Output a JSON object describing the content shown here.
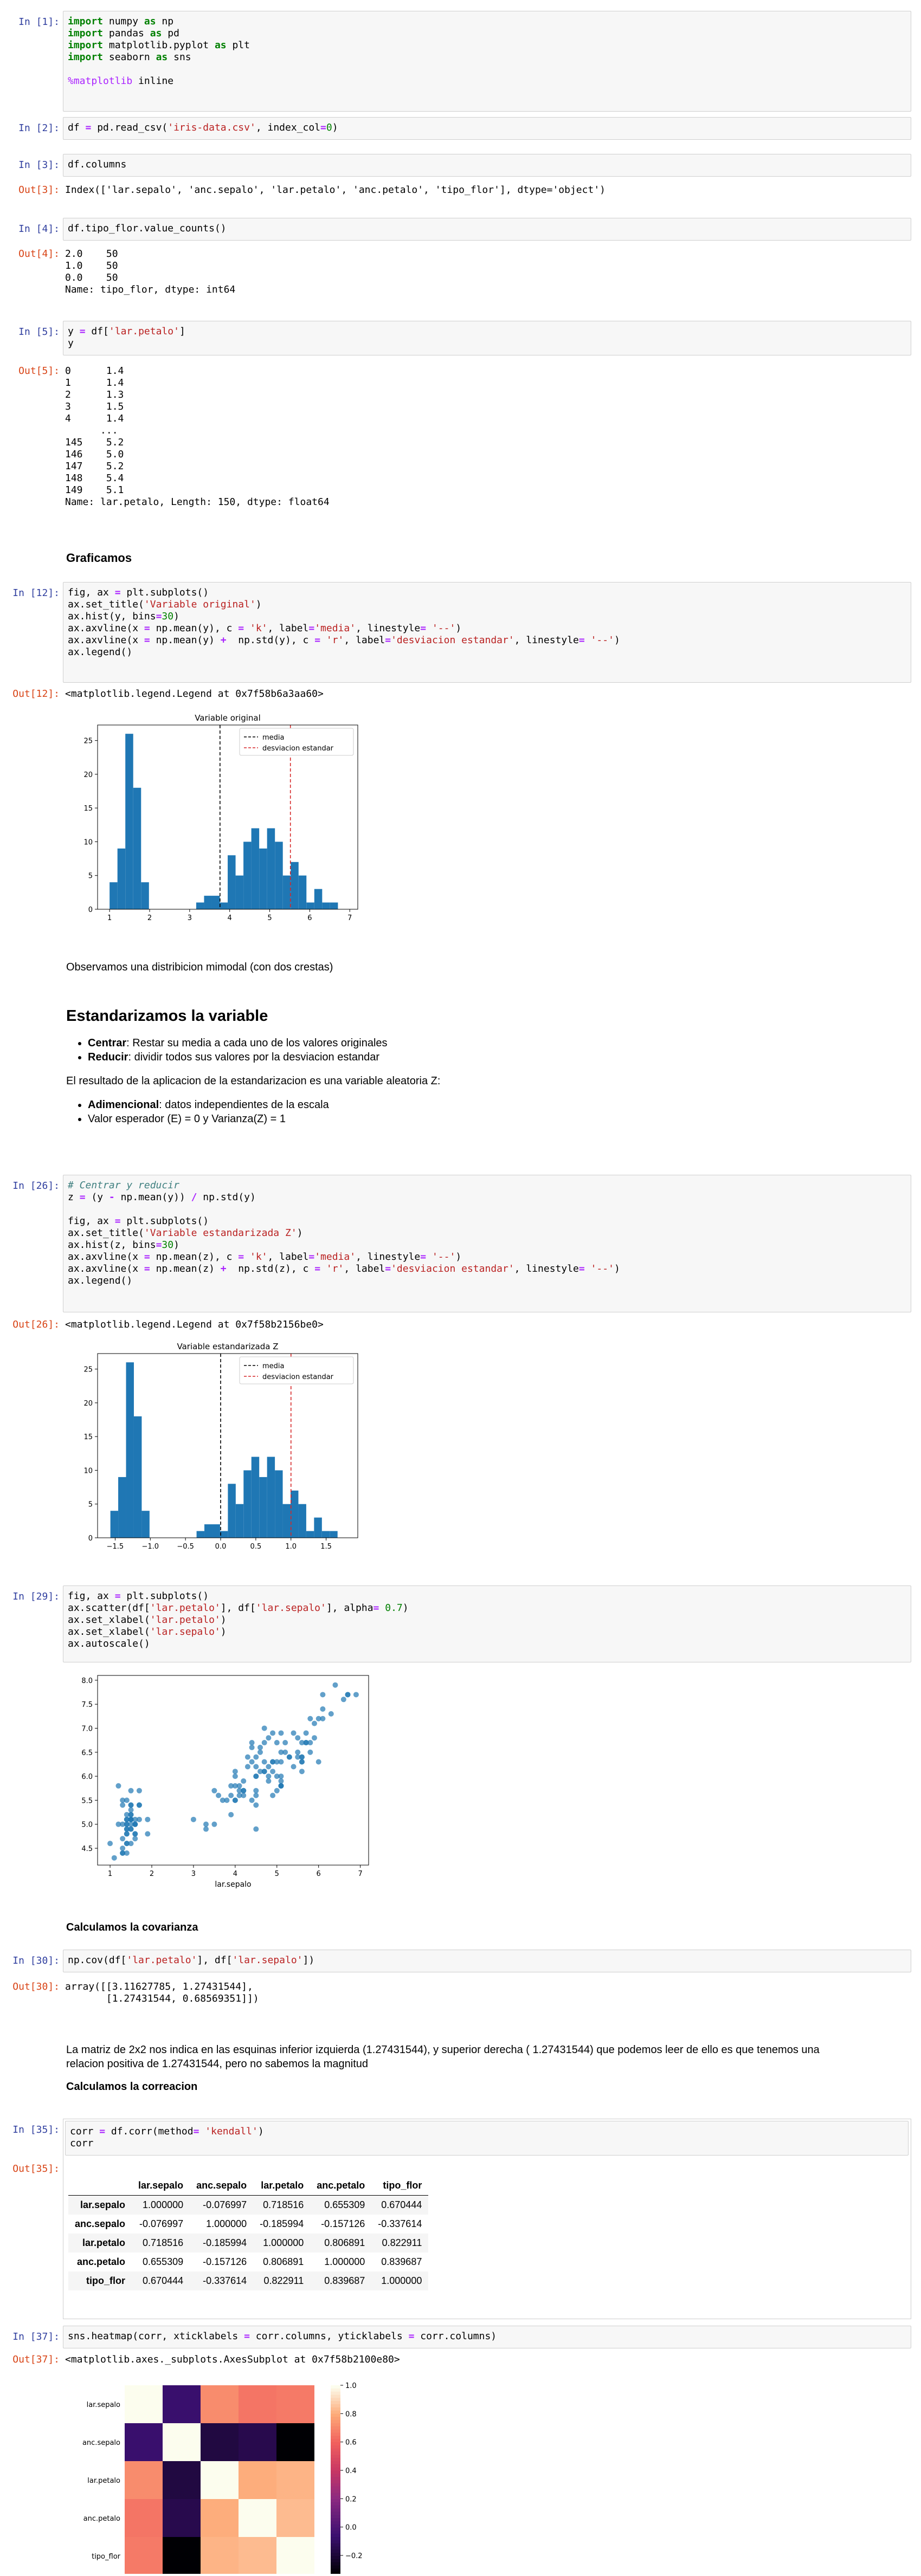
{
  "cells": {
    "c1": {
      "prompt": "In [1]:"
    },
    "c2": {
      "prompt": "In [2]:"
    },
    "c3": {
      "prompt": "In [3]:",
      "out_prompt": "Out[3]:",
      "output": "Index(['lar.sepalo', 'anc.sepalo', 'lar.petalo', 'anc.petalo', 'tipo_flor'], dtype='object')"
    },
    "c4": {
      "prompt": "In [4]:",
      "out_prompt": "Out[4]:",
      "output": "2.0    50\n1.0    50\n0.0    50\nName: tipo_flor, dtype: int64"
    },
    "c5": {
      "prompt": "In [5]:",
      "out_prompt": "Out[5]:",
      "output": "0      1.4\n1      1.4\n2      1.3\n3      1.5\n4      1.4\n      ...\n145    5.2\n146    5.0\n147    5.2\n148    5.4\n149    5.1\nName: lar.petalo, Length: 150, dtype: float64"
    },
    "c12": {
      "prompt": "In [12]:",
      "out_prompt": "Out[12]:",
      "output": "<matplotlib.legend.Legend at 0x7f58b6a3aa60>"
    },
    "c26": {
      "prompt": "In [26]:",
      "out_prompt": "Out[26]:",
      "output": "<matplotlib.legend.Legend at 0x7f58b2156be0>"
    },
    "c29": {
      "prompt": "In [29]:"
    },
    "c30": {
      "prompt": "In [30]:",
      "out_prompt": "Out[30]:",
      "output": "array([[3.11627785, 1.27431544],\n       [1.27431544, 0.68569351]])"
    },
    "c35": {
      "prompt": "In [35]:",
      "out_prompt": "Out[35]:"
    },
    "c37": {
      "prompt": "In [37]:",
      "out_prompt": "Out[37]:",
      "output": "<matplotlib.axes._subplots.AxesSubplot at 0x7f58b2100e80>"
    }
  },
  "code": {
    "c1_l1": "import numpy as np",
    "c1_l2": "import pandas as pd",
    "c1_l3": "import matplotlib.pyplot as plt",
    "c1_l4": "import seaborn as sns",
    "c1_l5": "%matplotlib inline",
    "c2": "df = pd.read_csv('iris-data.csv', index_col=0)",
    "c3": "df.columns",
    "c4": "df.tipo_flor.value_counts()",
    "c5_l1": "y = df['lar.petalo']",
    "c5_l2": "y",
    "c12_l1": "fig, ax = plt.subplots()",
    "c12_l2": "ax.set_title('Variable original')",
    "c12_l3": "ax.hist(y, bins=30)",
    "c12_l4": "ax.axvline(x = np.mean(y), c = 'k', label='media', linestyle= '--')",
    "c12_l5": "ax.axvline(x = np.mean(y) +  np.std(y), c = 'r', label='desviacion estandar', linestyle= '--')",
    "c12_l6": "ax.legend()",
    "c26_l1": "# Centrar y reducir",
    "c26_l2": "z = (y - np.mean(y)) / np.std(y)",
    "c26_l3": "fig, ax = plt.subplots()",
    "c26_l4": "ax.set_title('Variable estandarizada Z')",
    "c26_l5": "ax.hist(z, bins=30)",
    "c26_l6": "ax.axvline(x = np.mean(z), c = 'k', label='media', linestyle= '--')",
    "c26_l7": "ax.axvline(x = np.mean(z) +  np.std(z), c = 'r', label='desviacion estandar', linestyle= '--')",
    "c26_l8": "ax.legend()",
    "c29_l1": "fig, ax = plt.subplots()",
    "c29_l2": "ax.scatter(df['lar.petalo'], df['lar.sepalo'], alpha= 0.7)",
    "c29_l3": "ax.set_xlabel('lar.petalo')",
    "c29_l4": "ax.set_xlabel('lar.sepalo')",
    "c29_l5": "ax.autoscale()",
    "c30": "np.cov(df['lar.petalo'], df['lar.sepalo'])",
    "c35_l1": "corr = df.corr(method= 'kendall')",
    "c35_l2": "corr",
    "c37": "sns.heatmap(corr, xticklabels = corr.columns, yticklabels = corr.columns)"
  },
  "markdown": {
    "graficamos": "Graficamos",
    "observamos": "Observamos una distribicion mimodal (con dos crestas)",
    "estandarizamos": "Estandarizamos la variable",
    "centrar_b": "Centrar",
    "centrar_t": ": Restar su media a cada uno de los valores originales",
    "reducir_b": "Reducir",
    "reducir_t": ": dividir todos sus valores por la desviacion estandar",
    "resultado": "El resultado de la aplicacion de la estandarizacion es una variable aleatoria Z:",
    "adim_b": "Adimencional",
    "adim_t": ": datos independientes de la escala",
    "valor": "Valor esperador (E) = 0 y Varianza(Z) = 1",
    "covarianza": "Calculamos la covarianza",
    "matriz": "La matriz de 2x2 nos indica en las esquinas inferior izquierda (1.27431544), y superior derecha ( 1.27431544) que podemos leer de ello es que tenemos una",
    "matriz2": "relacion positiva de 1.27431544, pero no sabemos la magnitud",
    "correlacion": "Calculamos la correacion"
  },
  "corr_table": {
    "columns": [
      "lar.sepalo",
      "anc.sepalo",
      "lar.petalo",
      "anc.petalo",
      "tipo_flor"
    ],
    "rows": [
      {
        "name": "lar.sepalo",
        "values": [
          "1.000000",
          "-0.076997",
          "0.718516",
          "0.655309",
          "0.670444"
        ]
      },
      {
        "name": "anc.sepalo",
        "values": [
          "-0.076997",
          "1.000000",
          "-0.185994",
          "-0.157126",
          "-0.337614"
        ]
      },
      {
        "name": "lar.petalo",
        "values": [
          "0.718516",
          "-0.185994",
          "1.000000",
          "0.806891",
          "0.822911"
        ]
      },
      {
        "name": "anc.petalo",
        "values": [
          "0.655309",
          "-0.157126",
          "0.806891",
          "1.000000",
          "0.839687"
        ]
      },
      {
        "name": "tipo_flor",
        "values": [
          "0.670444",
          "-0.337614",
          "0.822911",
          "0.839687",
          "1.000000"
        ]
      }
    ]
  },
  "chart_data": [
    {
      "type": "bar",
      "title": "Variable original",
      "x_ticks": [
        "1",
        "2",
        "3",
        "4",
        "5",
        "6",
        "7"
      ],
      "y_ticks": [
        "0",
        "5",
        "10",
        "15",
        "20",
        "25"
      ],
      "xlim": [
        0.7,
        7.2
      ],
      "ylim": [
        0,
        27.3
      ],
      "bin_start": 1.0,
      "bin_width": 0.1967,
      "values": [
        4,
        9,
        26,
        18,
        4,
        0,
        0,
        0,
        0,
        0,
        0,
        1,
        2,
        2,
        1,
        8,
        5,
        10,
        12,
        9,
        12,
        10,
        5,
        7,
        5,
        1,
        3,
        1,
        1,
        0
      ],
      "legend": [
        "media",
        "desviacion estandar"
      ],
      "legend_colors": [
        "#000000",
        "#d62728"
      ],
      "vlines": [
        3.758,
        5.517
      ],
      "bar_color": "#1f77b4"
    },
    {
      "type": "bar",
      "title": "Variable estandarizada Z",
      "x_ticks": [
        "−1.5",
        "−1.0",
        "−0.5",
        "0.0",
        "0.5",
        "1.0",
        "1.5"
      ],
      "x_tick_values": [
        -1.5,
        -1.0,
        -0.5,
        0.0,
        0.5,
        1.0,
        1.5
      ],
      "y_ticks": [
        "0",
        "5",
        "10",
        "15",
        "20",
        "25"
      ],
      "xlim": [
        -1.75,
        1.95
      ],
      "ylim": [
        0,
        27.3
      ],
      "bin_start": -1.568,
      "bin_width": 0.1114,
      "values": [
        4,
        9,
        26,
        18,
        4,
        0,
        0,
        0,
        0,
        0,
        0,
        1,
        2,
        2,
        1,
        8,
        5,
        10,
        12,
        9,
        12,
        10,
        5,
        7,
        5,
        1,
        3,
        1,
        1,
        0
      ],
      "legend": [
        "media",
        "desviacion estandar"
      ],
      "legend_colors": [
        "#000000",
        "#d62728"
      ],
      "vlines": [
        0.0,
        1.0
      ],
      "bar_color": "#1f77b4"
    },
    {
      "type": "scatter",
      "xlabel": "lar.sepalo",
      "x_ticks": [
        "1",
        "2",
        "3",
        "4",
        "5",
        "6",
        "7"
      ],
      "y_ticks": [
        "4.5",
        "5.0",
        "5.5",
        "6.0",
        "6.5",
        "7.0",
        "7.5",
        "8.0"
      ],
      "xlim": [
        0.7,
        7.2
      ],
      "ylim": [
        4.15,
        8.1
      ],
      "color": "#1f77b4",
      "points": [
        [
          1.4,
          5.1
        ],
        [
          1.4,
          4.9
        ],
        [
          1.3,
          4.7
        ],
        [
          1.5,
          4.6
        ],
        [
          1.4,
          5.0
        ],
        [
          1.7,
          5.4
        ],
        [
          1.4,
          4.6
        ],
        [
          1.5,
          5.0
        ],
        [
          1.4,
          4.4
        ],
        [
          1.5,
          4.9
        ],
        [
          1.5,
          5.4
        ],
        [
          1.6,
          4.8
        ],
        [
          1.4,
          4.8
        ],
        [
          1.1,
          4.3
        ],
        [
          1.2,
          5.8
        ],
        [
          1.5,
          5.7
        ],
        [
          1.3,
          5.4
        ],
        [
          1.4,
          5.1
        ],
        [
          1.7,
          5.7
        ],
        [
          1.5,
          5.1
        ],
        [
          1.7,
          5.4
        ],
        [
          1.5,
          5.1
        ],
        [
          1.0,
          4.6
        ],
        [
          1.7,
          5.1
        ],
        [
          1.9,
          4.8
        ],
        [
          1.6,
          5.0
        ],
        [
          1.6,
          5.0
        ],
        [
          1.5,
          5.2
        ],
        [
          1.4,
          5.2
        ],
        [
          1.6,
          4.7
        ],
        [
          1.6,
          4.8
        ],
        [
          1.5,
          5.4
        ],
        [
          1.5,
          5.2
        ],
        [
          1.4,
          5.5
        ],
        [
          1.5,
          4.9
        ],
        [
          1.2,
          5.0
        ],
        [
          1.3,
          5.5
        ],
        [
          1.4,
          4.9
        ],
        [
          1.3,
          4.4
        ],
        [
          1.5,
          5.1
        ],
        [
          1.3,
          5.0
        ],
        [
          1.3,
          4.5
        ],
        [
          1.3,
          4.4
        ],
        [
          1.6,
          5.0
        ],
        [
          1.9,
          5.1
        ],
        [
          1.4,
          4.8
        ],
        [
          1.6,
          5.1
        ],
        [
          1.4,
          4.6
        ],
        [
          1.5,
          5.3
        ],
        [
          1.4,
          5.0
        ],
        [
          4.7,
          7.0
        ],
        [
          4.5,
          6.4
        ],
        [
          4.9,
          6.9
        ],
        [
          4.0,
          5.5
        ],
        [
          4.6,
          6.5
        ],
        [
          4.5,
          5.7
        ],
        [
          4.7,
          6.3
        ],
        [
          3.3,
          4.9
        ],
        [
          4.6,
          6.6
        ],
        [
          3.9,
          5.2
        ],
        [
          3.5,
          5.0
        ],
        [
          4.2,
          5.9
        ],
        [
          4.0,
          6.0
        ],
        [
          4.7,
          6.1
        ],
        [
          3.6,
          5.6
        ],
        [
          4.4,
          6.7
        ],
        [
          4.5,
          5.6
        ],
        [
          4.1,
          5.8
        ],
        [
          4.5,
          6.2
        ],
        [
          3.9,
          5.6
        ],
        [
          4.8,
          5.9
        ],
        [
          4.0,
          6.1
        ],
        [
          4.9,
          6.3
        ],
        [
          4.7,
          6.1
        ],
        [
          4.3,
          6.4
        ],
        [
          4.4,
          6.6
        ],
        [
          4.8,
          6.8
        ],
        [
          5.0,
          6.7
        ],
        [
          4.5,
          6.0
        ],
        [
          3.5,
          5.7
        ],
        [
          3.8,
          5.5
        ],
        [
          3.7,
          5.5
        ],
        [
          3.9,
          5.8
        ],
        [
          5.1,
          6.0
        ],
        [
          4.5,
          5.4
        ],
        [
          4.5,
          6.0
        ],
        [
          4.7,
          6.7
        ],
        [
          4.4,
          6.3
        ],
        [
          4.1,
          5.6
        ],
        [
          4.0,
          5.5
        ],
        [
          4.4,
          5.5
        ],
        [
          4.6,
          6.1
        ],
        [
          4.0,
          5.8
        ],
        [
          3.3,
          5.0
        ],
        [
          4.2,
          5.6
        ],
        [
          4.2,
          5.7
        ],
        [
          4.2,
          5.7
        ],
        [
          4.3,
          6.2
        ],
        [
          3.0,
          5.1
        ],
        [
          4.1,
          5.7
        ],
        [
          6.0,
          6.3
        ],
        [
          5.1,
          5.8
        ],
        [
          5.9,
          7.1
        ],
        [
          5.6,
          6.3
        ],
        [
          5.8,
          6.5
        ],
        [
          6.6,
          7.6
        ],
        [
          4.5,
          4.9
        ],
        [
          6.3,
          7.3
        ],
        [
          5.8,
          6.7
        ],
        [
          6.1,
          7.2
        ],
        [
          5.1,
          6.5
        ],
        [
          5.3,
          6.4
        ],
        [
          5.5,
          6.8
        ],
        [
          5.0,
          5.7
        ],
        [
          5.1,
          5.8
        ],
        [
          5.3,
          6.4
        ],
        [
          5.5,
          6.5
        ],
        [
          6.7,
          7.7
        ],
        [
          6.9,
          7.7
        ],
        [
          5.0,
          6.0
        ],
        [
          5.7,
          6.9
        ],
        [
          4.9,
          5.6
        ],
        [
          6.7,
          7.7
        ],
        [
          4.9,
          6.3
        ],
        [
          5.7,
          6.7
        ],
        [
          6.0,
          7.2
        ],
        [
          4.8,
          6.2
        ],
        [
          4.9,
          6.1
        ],
        [
          5.6,
          6.4
        ],
        [
          5.8,
          7.2
        ],
        [
          6.1,
          7.4
        ],
        [
          6.4,
          7.9
        ],
        [
          5.6,
          6.4
        ],
        [
          5.1,
          6.3
        ],
        [
          5.6,
          6.1
        ],
        [
          6.1,
          7.7
        ],
        [
          5.6,
          6.3
        ],
        [
          5.5,
          6.4
        ],
        [
          4.8,
          6.0
        ],
        [
          5.4,
          6.9
        ],
        [
          5.6,
          6.7
        ],
        [
          5.1,
          6.9
        ],
        [
          5.1,
          5.8
        ],
        [
          5.9,
          6.8
        ],
        [
          5.7,
          6.7
        ],
        [
          5.2,
          6.7
        ],
        [
          5.0,
          6.3
        ],
        [
          5.2,
          6.5
        ],
        [
          5.4,
          6.2
        ],
        [
          5.1,
          5.9
        ]
      ]
    },
    {
      "type": "heatmap",
      "labels": [
        "lar.sepalo",
        "anc.sepalo",
        "lar.petalo",
        "anc.petalo",
        "tipo_flor"
      ],
      "values": [
        [
          1.0,
          -0.076997,
          0.718516,
          0.655309,
          0.670444
        ],
        [
          -0.076997,
          1.0,
          -0.185994,
          -0.157126,
          -0.337614
        ],
        [
          0.718516,
          -0.185994,
          1.0,
          0.806891,
          0.822911
        ],
        [
          0.655309,
          -0.157126,
          0.806891,
          1.0,
          0.839687
        ],
        [
          0.670444,
          -0.337614,
          0.822911,
          0.839687,
          1.0
        ]
      ],
      "colorbar_ticks": [
        "1.0",
        "0.8",
        "0.6",
        "0.4",
        "0.2",
        "0.0",
        "−0.2"
      ],
      "colorbar_tick_values": [
        1.0,
        0.8,
        0.6,
        0.4,
        0.2,
        0.0,
        -0.2
      ],
      "vmin": -0.337614,
      "vmax": 1.0
    }
  ]
}
